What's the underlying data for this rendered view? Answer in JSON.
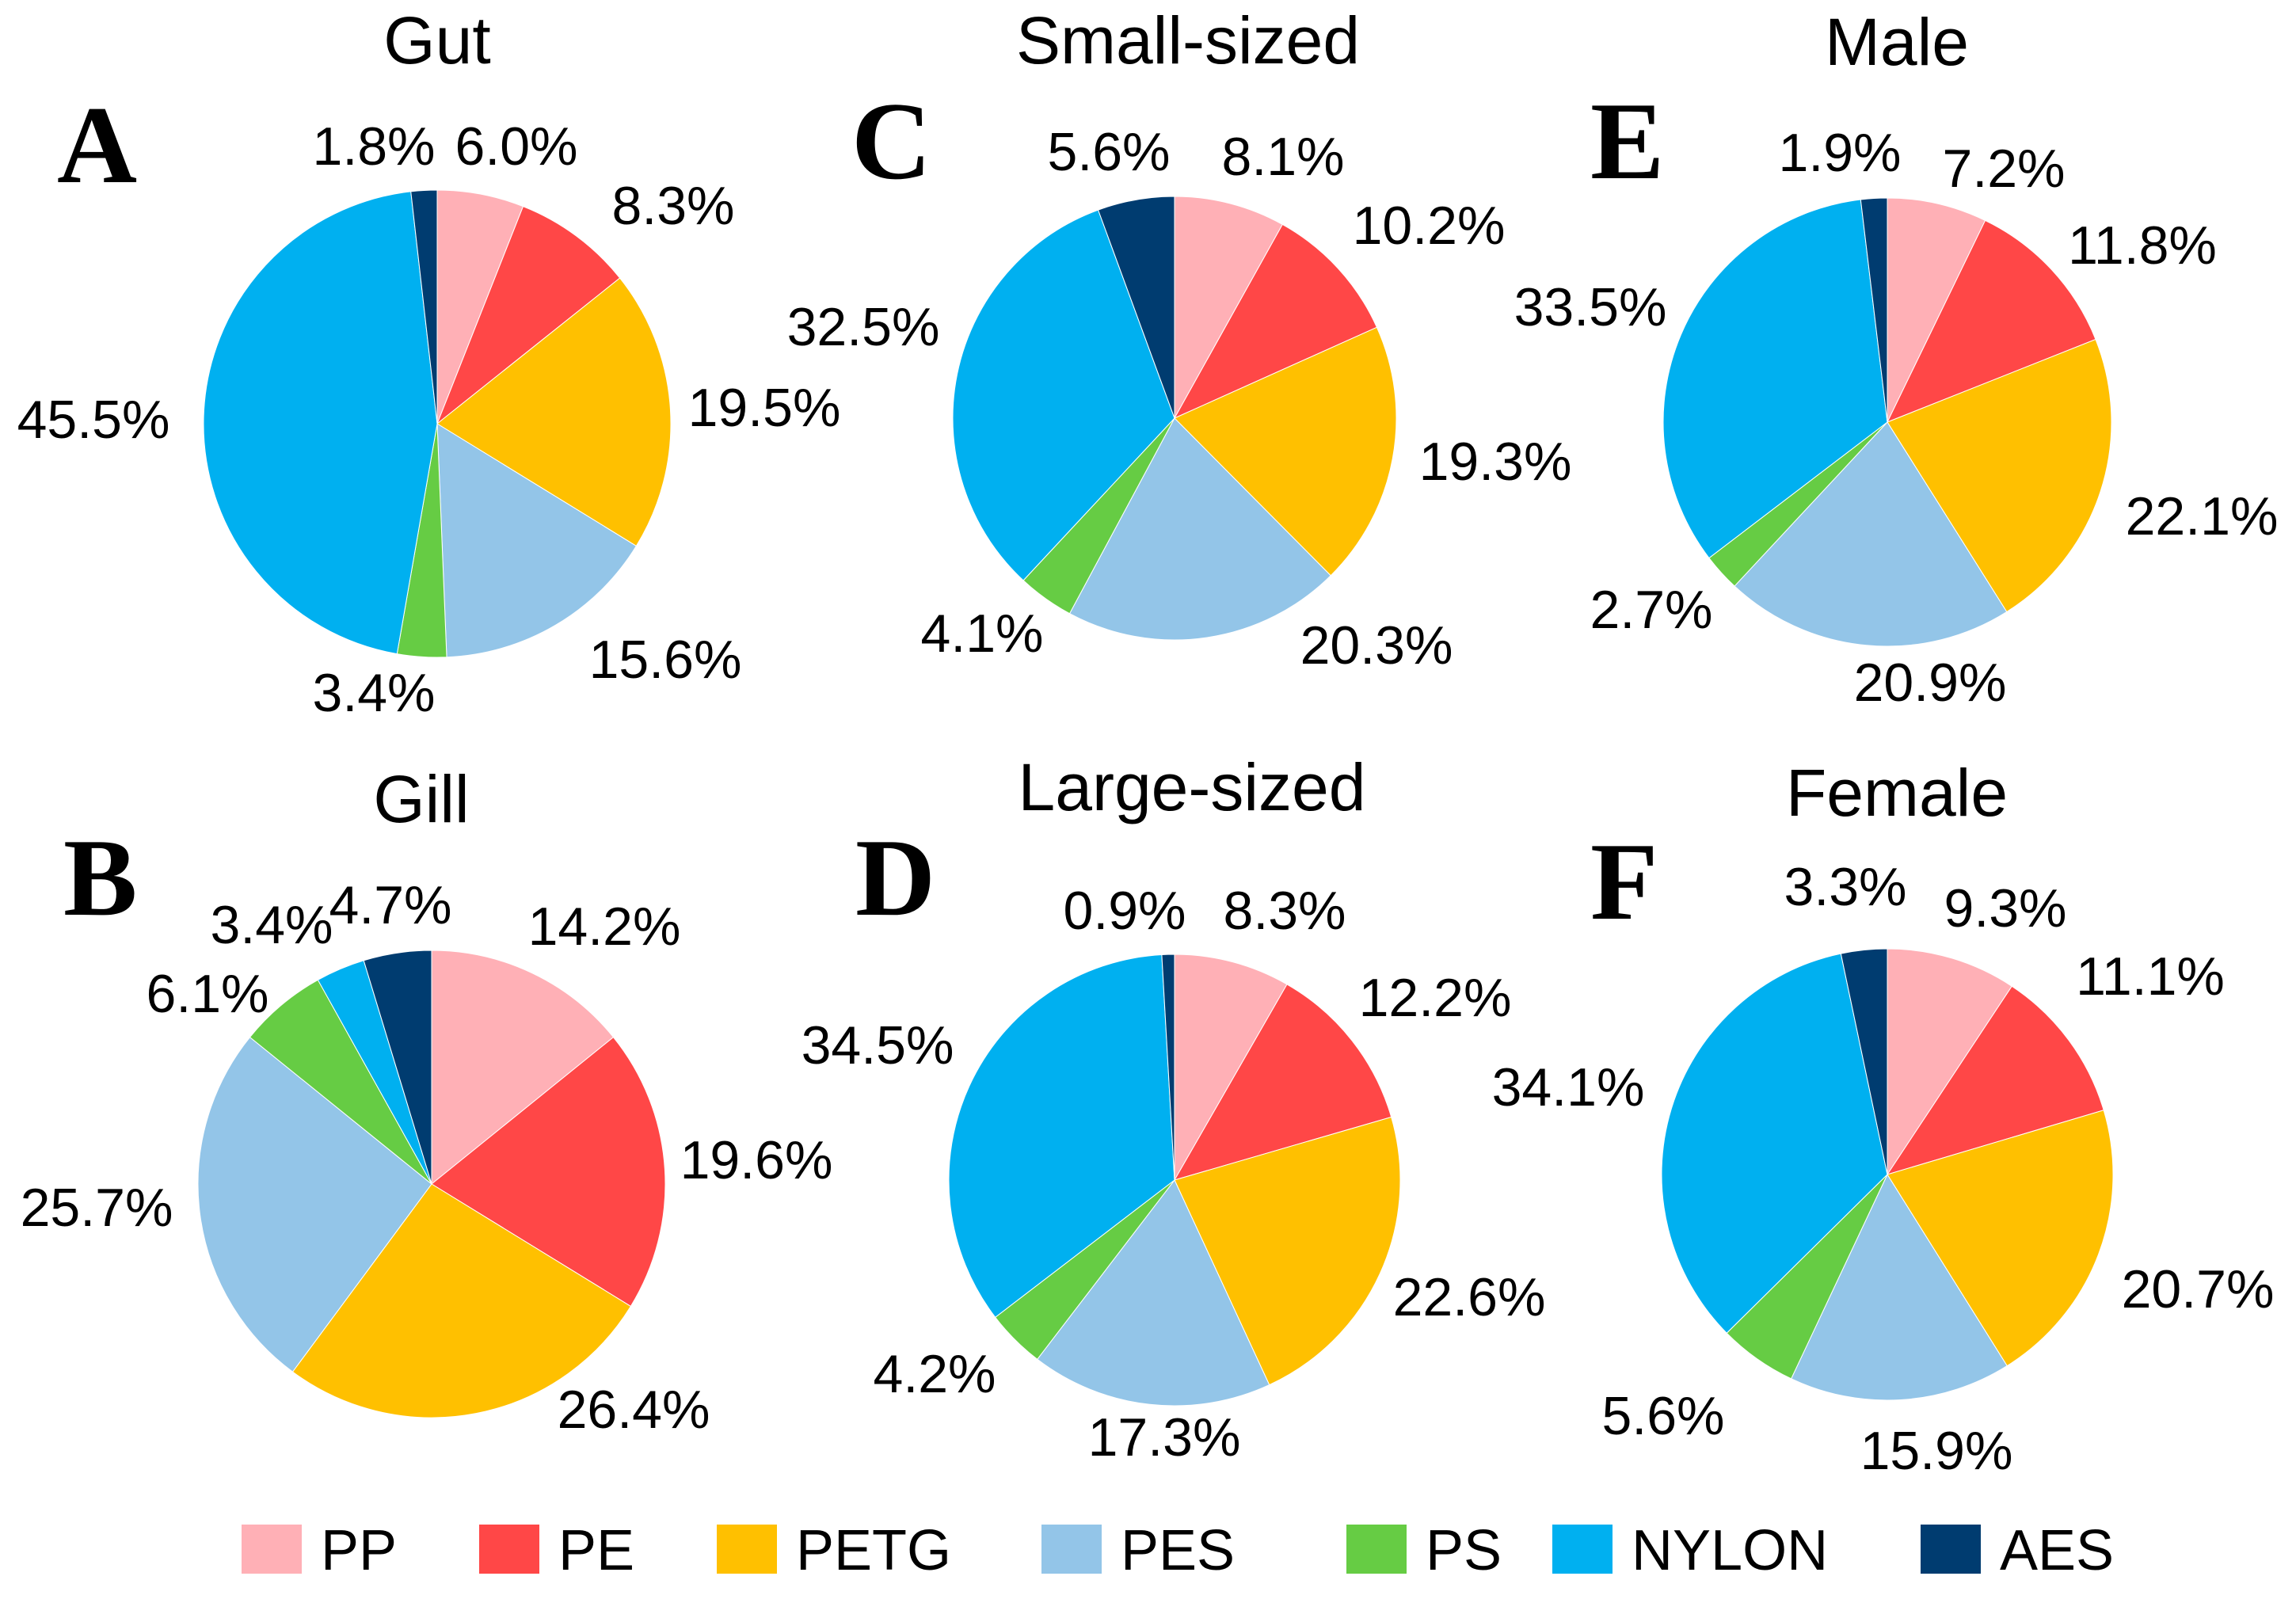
{
  "colors": {
    "PP": "#FFB0B6",
    "PE": "#FF4747",
    "PETG": "#FFC000",
    "PES": "#93C5E8",
    "PS": "#66CC44",
    "NYLON": "#00B0F0",
    "AES": "#003C70"
  },
  "chart_data": [
    {
      "type": "pie",
      "panel": "A",
      "title": "Gut",
      "categories": [
        "PP",
        "PE",
        "PETG",
        "PES",
        "PS",
        "NYLON",
        "AES"
      ],
      "values": [
        6.0,
        8.3,
        19.5,
        15.6,
        3.4,
        45.5,
        1.8
      ],
      "labels": [
        "6.0%",
        "8.3%",
        "19.5%",
        "15.6%",
        "3.4%",
        "45.5%",
        "1.8%"
      ]
    },
    {
      "type": "pie",
      "panel": "B",
      "title": "Gill",
      "categories": [
        "PP",
        "PE",
        "PETG",
        "PES",
        "PS",
        "NYLON",
        "AES"
      ],
      "values": [
        14.2,
        19.6,
        26.4,
        25.7,
        6.1,
        3.4,
        4.7
      ],
      "labels": [
        "14.2%",
        "19.6%",
        "26.4%",
        "25.7%",
        "6.1%",
        "3.4%",
        "4.7%"
      ]
    },
    {
      "type": "pie",
      "panel": "C",
      "title": "Small-sized",
      "categories": [
        "PP",
        "PE",
        "PETG",
        "PES",
        "PS",
        "NYLON",
        "AES"
      ],
      "values": [
        8.1,
        10.2,
        19.3,
        20.3,
        4.1,
        32.5,
        5.6
      ],
      "labels": [
        "8.1%",
        "10.2%",
        "19.3%",
        "20.3%",
        "4.1%",
        "32.5%",
        "5.6%"
      ]
    },
    {
      "type": "pie",
      "panel": "D",
      "title": "Large-sized",
      "categories": [
        "PP",
        "PE",
        "PETG",
        "PES",
        "PS",
        "NYLON",
        "AES"
      ],
      "values": [
        8.3,
        12.2,
        22.6,
        17.3,
        4.2,
        34.5,
        0.9
      ],
      "labels": [
        "8.3%",
        "12.2%",
        "22.6%",
        "17.3%",
        "4.2%",
        "34.5%",
        "0.9%"
      ]
    },
    {
      "type": "pie",
      "panel": "E",
      "title": "Male",
      "categories": [
        "PP",
        "PE",
        "PETG",
        "PES",
        "PS",
        "NYLON",
        "AES"
      ],
      "values": [
        7.2,
        11.8,
        22.1,
        20.9,
        2.7,
        33.5,
        1.9
      ],
      "labels": [
        "7.2%",
        "11.8%",
        "22.1%",
        "20.9%",
        "2.7%",
        "33.5%",
        "1.9%"
      ]
    },
    {
      "type": "pie",
      "panel": "F",
      "title": "Female",
      "categories": [
        "PP",
        "PE",
        "PETG",
        "PES",
        "PS",
        "NYLON",
        "AES"
      ],
      "values": [
        9.3,
        11.1,
        20.7,
        15.9,
        5.6,
        34.1,
        3.3
      ],
      "labels": [
        "9.3%",
        "11.1%",
        "20.7%",
        "15.9%",
        "5.6%",
        "34.1%",
        "3.3%"
      ]
    }
  ],
  "legend": [
    {
      "key": "PP",
      "label": "PP"
    },
    {
      "key": "PE",
      "label": "PE"
    },
    {
      "key": "PETG",
      "label": "PETG"
    },
    {
      "key": "PES",
      "label": "PES"
    },
    {
      "key": "PS",
      "label": "PS"
    },
    {
      "key": "NYLON",
      "label": "NYLON"
    },
    {
      "key": "AES",
      "label": "AES"
    }
  ]
}
